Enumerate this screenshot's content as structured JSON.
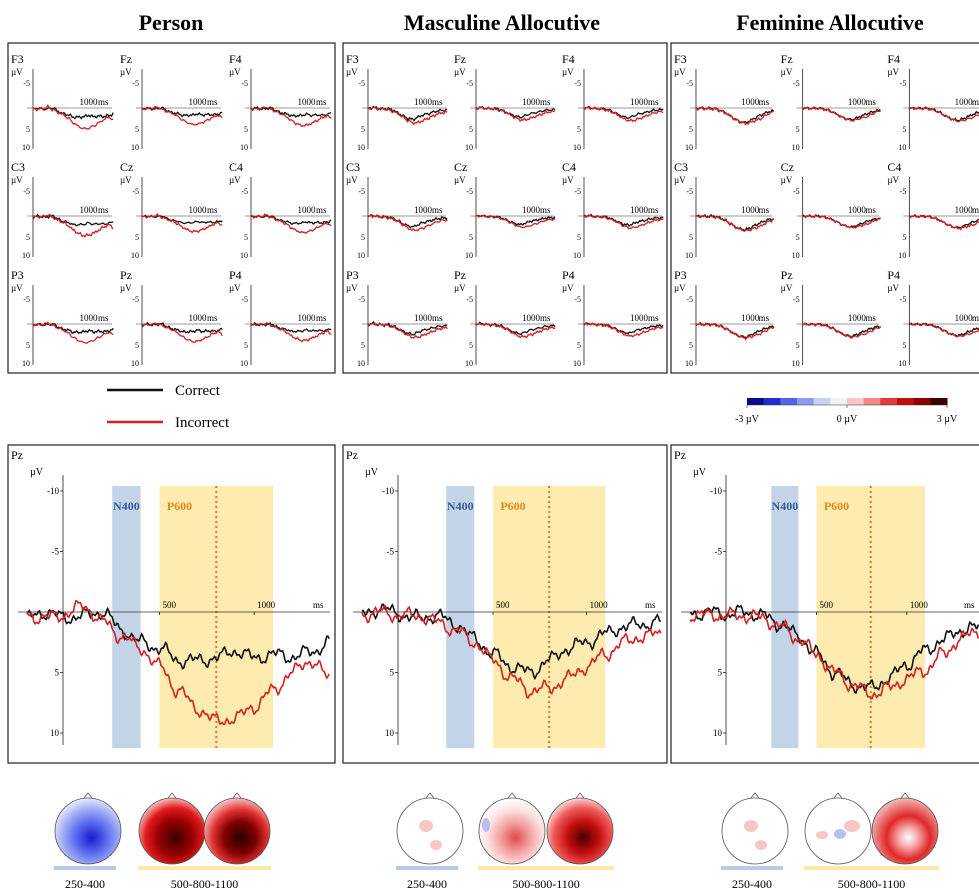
{
  "figure": {
    "conditions": [
      {
        "id": "person",
        "title": "Person"
      },
      {
        "id": "masc",
        "title": "Masculine Allocutive"
      },
      {
        "id": "fem",
        "title": "Feminine Allocutive"
      }
    ],
    "legend": {
      "items": [
        {
          "label": "Correct",
          "color": "#111111"
        },
        {
          "label": "Incorrect",
          "color": "#d42020"
        }
      ]
    },
    "colorbar": {
      "labels": [
        "-3 µV",
        "0 µV",
        "3 µV"
      ],
      "colors": [
        "#0a0a8c",
        "#1e2fd0",
        "#4f66e6",
        "#8a9af0",
        "#c8cff8",
        "#f2f2f2",
        "#f8c6c6",
        "#f08a8a",
        "#e23c3c",
        "#c40e0e",
        "#8e0000",
        "#3c0000"
      ]
    },
    "small_panels": {
      "electrodes": [
        "F3",
        "Fz",
        "F4",
        "C3",
        "Cz",
        "C4",
        "P3",
        "Pz",
        "P4"
      ],
      "unit": "µV",
      "tick_labels": [
        "-5",
        "5",
        "10"
      ],
      "time_label": "1000",
      "time_unit": "ms"
    },
    "big_panels": {
      "electrode": "Pz",
      "unit": "µV",
      "y_tick_labels": [
        "-10",
        "-5",
        "5",
        "10"
      ],
      "x_tick_labels": [
        "500",
        "1000"
      ],
      "x_unit": "ms",
      "windows": [
        {
          "label": "N400",
          "start": 250,
          "end": 400,
          "fill": "#b8cce4",
          "text_color": "#3a5a9a"
        },
        {
          "label": "P600",
          "start": 500,
          "end": 1100,
          "fill": "#fde9a6",
          "text_color": "#e08a1a"
        }
      ],
      "dotted_line_ms": 800,
      "dotted_color": "#e8702a"
    },
    "topomaps": {
      "window_labels": [
        "250-400",
        "500-800-1100"
      ],
      "bar_colors": [
        "#b8cce4",
        "#fde9a6"
      ]
    }
  },
  "chart_data": [
    {
      "type": "line",
      "title": "Person",
      "electrode": "Pz",
      "xlabel": "ms",
      "ylabel": "µV",
      "ylim": [
        -12,
        12
      ],
      "y_inverted": true,
      "xlim": [
        -200,
        1400
      ],
      "x": [
        -200,
        -100,
        0,
        100,
        200,
        300,
        400,
        500,
        600,
        700,
        800,
        900,
        1000,
        1100,
        1200,
        1300,
        1400
      ],
      "series": [
        {
          "name": "Correct",
          "values": [
            0.5,
            0,
            0.5,
            0.3,
            0,
            1.5,
            2.5,
            3.0,
            4.0,
            4.0,
            3.8,
            3.2,
            3.8,
            3.5,
            3.7,
            3.3,
            2.5
          ]
        },
        {
          "name": "Incorrect",
          "values": [
            0.3,
            0.5,
            0.2,
            -0.5,
            0.8,
            2.0,
            3.0,
            4.5,
            6.5,
            8.0,
            9.0,
            8.8,
            7.8,
            6.5,
            5.0,
            4.0,
            5.5
          ]
        }
      ]
    },
    {
      "type": "line",
      "title": "Masculine Allocutive",
      "electrode": "Pz",
      "xlabel": "ms",
      "ylabel": "µV",
      "ylim": [
        -12,
        12
      ],
      "y_inverted": true,
      "xlim": [
        -200,
        1400
      ],
      "x": [
        -200,
        -100,
        0,
        100,
        200,
        300,
        400,
        500,
        600,
        700,
        800,
        900,
        1000,
        1100,
        1200,
        1300,
        1400
      ],
      "series": [
        {
          "name": "Correct",
          "values": [
            0.2,
            -0.3,
            0.2,
            0.5,
            0.3,
            1.0,
            2.2,
            3.5,
            4.5,
            5.0,
            4.0,
            3.0,
            2.5,
            1.8,
            1.2,
            1.0,
            0.8
          ]
        },
        {
          "name": "Incorrect",
          "values": [
            0.2,
            0.0,
            0.3,
            0.3,
            0.8,
            1.5,
            2.5,
            4.0,
            5.5,
            6.5,
            6.3,
            5.5,
            4.5,
            3.5,
            2.5,
            2.0,
            1.8
          ]
        }
      ]
    },
    {
      "type": "line",
      "title": "Feminine Allocutive",
      "electrode": "Pz",
      "xlabel": "ms",
      "ylabel": "µV",
      "ylim": [
        -12,
        12
      ],
      "y_inverted": true,
      "xlim": [
        -200,
        1400
      ],
      "x": [
        -200,
        -100,
        0,
        100,
        200,
        300,
        400,
        500,
        600,
        700,
        800,
        900,
        1000,
        1100,
        1200,
        1300,
        1400
      ],
      "series": [
        {
          "name": "Correct",
          "values": [
            0.2,
            0.0,
            0.2,
            0.0,
            0.3,
            1.0,
            2.0,
            3.5,
            5.0,
            6.0,
            6.3,
            5.5,
            4.3,
            3.2,
            2.3,
            1.5,
            1.3
          ]
        },
        {
          "name": "Incorrect",
          "values": [
            0.2,
            0.2,
            0.3,
            0.3,
            0.5,
            1.2,
            2.2,
            3.5,
            5.0,
            6.0,
            6.8,
            6.3,
            5.5,
            4.8,
            3.5,
            2.2,
            1.5
          ]
        }
      ]
    }
  ]
}
